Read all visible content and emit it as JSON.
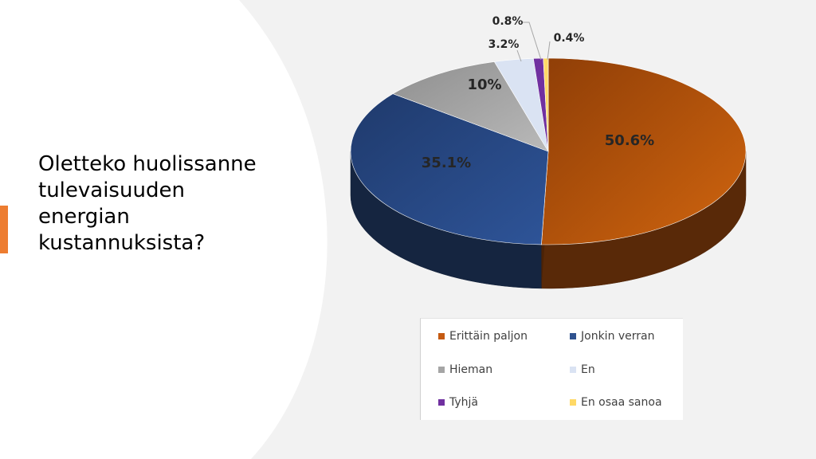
{
  "slide": {
    "title": "Oletteko huolissanne\ntulevaisuuden\nenergian\nkustannuksista?",
    "accent_color": "#ed7d31"
  },
  "chart_data": {
    "type": "pie",
    "categories": [
      "Erittäin paljon",
      "Jonkin verran",
      "Hieman",
      "En",
      "Tyhjä",
      "En osaa sanoa"
    ],
    "values": [
      50.6,
      35.1,
      10,
      3.2,
      0.8,
      0.4
    ],
    "data_labels": [
      "50.6%",
      "35.1%",
      "10%",
      "3.2%",
      "0.8%",
      "0.4%"
    ],
    "colors": [
      "#c55a11",
      "#2f528f",
      "#a5a5a5",
      "#dae3f3",
      "#7030a0",
      "#ffd966"
    ],
    "legend_position": "bottom",
    "style": "3d"
  }
}
